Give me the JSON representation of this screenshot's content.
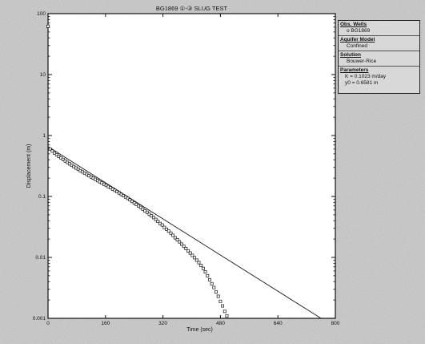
{
  "chart_data": {
    "type": "scatter",
    "title": "BG1869 ①-③ SLUG TEST",
    "xlabel": "Time (sec)",
    "ylabel": "Displacement (m)",
    "xlim": [
      0,
      800
    ],
    "ylim": [
      0.001,
      100
    ],
    "y_scale": "log",
    "x_ticks": [
      0,
      160,
      320,
      480,
      640,
      800
    ],
    "x_tick_labels": [
      "0",
      "160",
      "320",
      "480",
      "640",
      "800"
    ],
    "y_ticks": [
      0.001,
      0.01,
      0.1,
      1,
      10,
      100
    ],
    "y_tick_labels": [
      "0.001",
      "0.01",
      "0.1",
      "1",
      "10",
      "100"
    ],
    "grid": false,
    "series": [
      {
        "type": "scatter",
        "marker": "open-square",
        "x": [
          0,
          6,
          12,
          18,
          24,
          30,
          36,
          42,
          48,
          54,
          60,
          66,
          72,
          78,
          84,
          90,
          96,
          102,
          108,
          114,
          120,
          126,
          132,
          138,
          144,
          150,
          156,
          162,
          168,
          174,
          180,
          186,
          192,
          198,
          204,
          210,
          216,
          222,
          228,
          234,
          240,
          246,
          252,
          258,
          264,
          270,
          276,
          282,
          288,
          294,
          300,
          306,
          312,
          318,
          324,
          330,
          336,
          342,
          348,
          354,
          360,
          366,
          372,
          378,
          384,
          390,
          396,
          402,
          408,
          414,
          420,
          426,
          432,
          438,
          444,
          450,
          456,
          462,
          468,
          474,
          480,
          486,
          492,
          498
        ],
        "y": [
          62,
          0.6,
          0.555,
          0.515,
          0.482,
          0.455,
          0.43,
          0.405,
          0.383,
          0.362,
          0.343,
          0.325,
          0.309,
          0.293,
          0.279,
          0.265,
          0.253,
          0.241,
          0.23,
          0.219,
          0.209,
          0.2,
          0.191,
          0.182,
          0.174,
          0.166,
          0.159,
          0.152,
          0.145,
          0.139,
          0.132,
          0.126,
          0.12,
          0.114,
          0.108,
          0.103,
          0.098,
          0.093,
          0.088,
          0.083,
          0.078,
          0.074,
          0.07,
          0.066,
          0.062,
          0.058,
          0.055,
          0.051,
          0.048,
          0.045,
          0.042,
          0.039,
          0.036,
          0.034,
          0.031,
          0.029,
          0.027,
          0.025,
          0.023,
          0.021,
          0.0195,
          0.018,
          0.0165,
          0.0152,
          0.014,
          0.0128,
          0.0118,
          0.0108,
          0.0099,
          0.009,
          0.0082,
          0.0074,
          0.0066,
          0.0058,
          0.005,
          0.0043,
          0.0037,
          0.0032,
          0.0027,
          0.0023,
          0.0019,
          0.0016,
          0.0013,
          0.0011
        ]
      },
      {
        "type": "line",
        "x": [
          0,
          760
        ],
        "y": [
          0.6581,
          0.001
        ]
      }
    ]
  },
  "info_panel": {
    "obs_wells_heading": "Obs. Wells",
    "obs_wells_value": "o BG1869",
    "aquifer_model_heading": "Aquifer Model",
    "aquifer_model_value": "Confined",
    "solution_heading": "Solution",
    "solution_value": "Bouwer-Rice",
    "parameters_heading": "Parameters",
    "param_k": "K = 0.1023 m/day",
    "param_y0": "y0 = 0.6581 m"
  },
  "colors": {
    "background": "#c9c9c9",
    "plot_area": "#ffffff",
    "ink": "#111111"
  }
}
